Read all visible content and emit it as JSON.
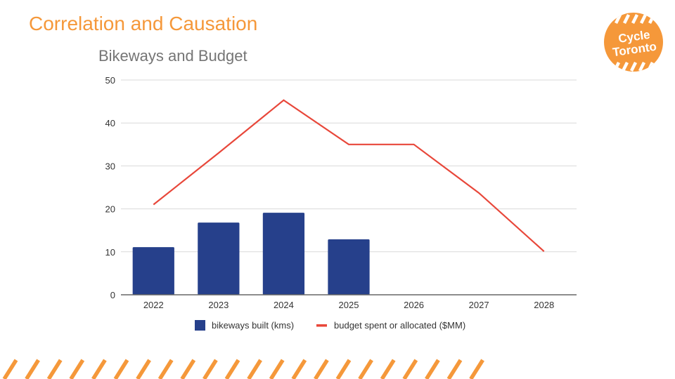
{
  "slide": {
    "title": "Correlation and Causation"
  },
  "logo": {
    "line1": "Cycle",
    "line2": "Toronto"
  },
  "colors": {
    "accent": "#f5983a",
    "bar": "#26408b",
    "line": "#e8473a",
    "grid": "#d9d9d9",
    "axis": "#666666",
    "chart_title": "#757575",
    "text": "#333333"
  },
  "chart_data": {
    "type": "bar",
    "title": "Bikeways and Budget",
    "xlabel": "",
    "ylabel": "",
    "categories": [
      "2022",
      "2023",
      "2024",
      "2025",
      "2026",
      "2027",
      "2028"
    ],
    "ylim": [
      0,
      50
    ],
    "yticks": [
      0,
      10,
      20,
      30,
      40,
      50
    ],
    "grid": true,
    "legend_position": "bottom",
    "series": [
      {
        "name": "bikeways built (kms)",
        "type": "bar",
        "values": [
          11.1,
          16.8,
          19.1,
          12.9,
          null,
          null,
          null
        ]
      },
      {
        "name": "budget spent or allocated ($MM)",
        "type": "line",
        "values": [
          21,
          33,
          45.3,
          35,
          35,
          23.7,
          10.1
        ]
      }
    ]
  }
}
